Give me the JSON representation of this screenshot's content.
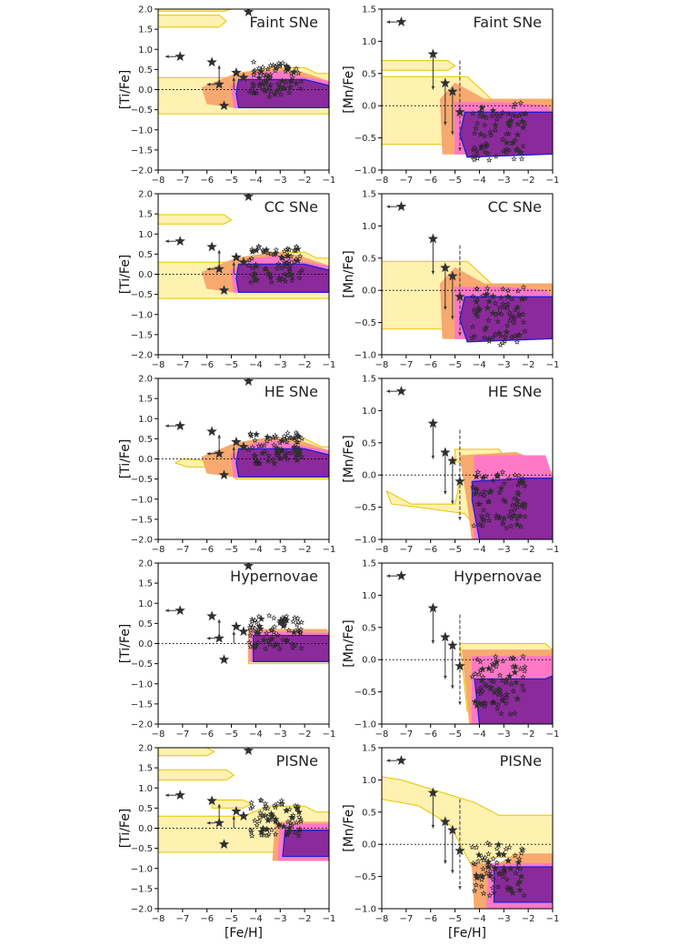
{
  "figure": {
    "xlabel": "[Fe/H]",
    "row_titles": [
      "Faint SNe",
      "CC SNe",
      "HE SNe",
      "Hypernovae",
      "PISNe"
    ]
  },
  "colors": {
    "c1": "#fff1b0",
    "c1_edge": "#e8c400",
    "c2": "#f7a96f",
    "c3": "#ff79c6",
    "c4": "#8b2a9a",
    "c4_edge": "#1f1fd6",
    "star": "#303030"
  },
  "chart_data": [
    {
      "type": "scatter",
      "panel": "Ti-Faint",
      "title": "Faint SNe",
      "ylabel": "[Ti/Fe]",
      "xlabel": "",
      "xlim": [
        -8,
        -1
      ],
      "ylim": [
        -2,
        2
      ],
      "xticks": [
        "−8",
        "−7",
        "−6",
        "−5",
        "−4",
        "−3",
        "−2",
        "−1"
      ],
      "yticks": [
        "2.0",
        "1.5",
        "1.0",
        "0.5",
        "0.0",
        "−0.5",
        "−1.0",
        "−1.5",
        "−2.0"
      ],
      "big_stars": [
        [
          -7.1,
          0.82
        ],
        [
          -5.8,
          0.68
        ],
        [
          -5.5,
          0.13
        ],
        [
          -5.3,
          -0.4
        ],
        [
          -4.3,
          1.93
        ],
        [
          -4.8,
          0.42
        ],
        [
          -4.5,
          0.3
        ]
      ]
    },
    {
      "type": "scatter",
      "panel": "Mn-Faint",
      "title": "Faint SNe",
      "ylabel": "[Mn/Fe]",
      "xlabel": "",
      "xlim": [
        -8,
        -1
      ],
      "ylim": [
        -1,
        1.5
      ],
      "xticks": [
        "−8",
        "−7",
        "−6",
        "−5",
        "−4",
        "−3",
        "−2",
        "−1"
      ],
      "yticks": [
        "1.5",
        "1.0",
        "0.5",
        "0.0",
        "−0.5",
        "−1.0"
      ],
      "big_stars": [
        [
          -7.2,
          1.3
        ],
        [
          -5.9,
          0.8
        ],
        [
          -5.4,
          0.35
        ],
        [
          -5.1,
          0.22
        ],
        [
          -4.8,
          -0.1
        ]
      ]
    },
    {
      "type": "scatter",
      "panel": "Ti-CC",
      "title": "CC SNe",
      "ylabel": "[Ti/Fe]",
      "xlabel": "",
      "xlim": [
        -8,
        -1
      ],
      "ylim": [
        -2,
        2
      ],
      "xticks": [
        "−8",
        "−7",
        "−6",
        "−5",
        "−4",
        "−3",
        "−2",
        "−1"
      ],
      "yticks": [
        "2.0",
        "1.5",
        "1.0",
        "0.5",
        "0.0",
        "−0.5",
        "−1.0",
        "−1.5",
        "−2.0"
      ],
      "big_stars": [
        [
          -7.1,
          0.82
        ],
        [
          -5.8,
          0.68
        ],
        [
          -5.5,
          0.13
        ],
        [
          -5.3,
          -0.4
        ],
        [
          -4.3,
          1.93
        ],
        [
          -4.8,
          0.42
        ],
        [
          -4.5,
          0.3
        ]
      ]
    },
    {
      "type": "scatter",
      "panel": "Mn-CC",
      "title": "CC SNe",
      "ylabel": "[Mn/Fe]",
      "xlabel": "",
      "xlim": [
        -8,
        -1
      ],
      "ylim": [
        -1,
        1.5
      ],
      "xticks": [
        "−8",
        "−7",
        "−6",
        "−5",
        "−4",
        "−3",
        "−2",
        "−1"
      ],
      "yticks": [
        "1.5",
        "1.0",
        "0.5",
        "0.0",
        "−0.5",
        "−1.0"
      ],
      "big_stars": [
        [
          -7.2,
          1.3
        ],
        [
          -5.9,
          0.8
        ],
        [
          -5.4,
          0.35
        ],
        [
          -5.1,
          0.22
        ],
        [
          -4.8,
          -0.1
        ]
      ]
    },
    {
      "type": "scatter",
      "panel": "Ti-HE",
      "title": "HE SNe",
      "ylabel": "[Ti/Fe]",
      "xlabel": "",
      "xlim": [
        -8,
        -1
      ],
      "ylim": [
        -2,
        2
      ],
      "xticks": [
        "−8",
        "−7",
        "−6",
        "−5",
        "−4",
        "−3",
        "−2",
        "−1"
      ],
      "yticks": [
        "2.0",
        "1.5",
        "1.0",
        "0.5",
        "0.0",
        "−0.5",
        "−1.0",
        "−1.5",
        "−2.0"
      ],
      "big_stars": [
        [
          -7.1,
          0.82
        ],
        [
          -5.8,
          0.68
        ],
        [
          -5.5,
          0.13
        ],
        [
          -5.3,
          -0.4
        ],
        [
          -4.3,
          1.93
        ],
        [
          -4.8,
          0.42
        ],
        [
          -4.5,
          0.3
        ]
      ]
    },
    {
      "type": "scatter",
      "panel": "Mn-HE",
      "title": "HE SNe",
      "ylabel": "[Mn/Fe]",
      "xlabel": "",
      "xlim": [
        -8,
        -1
      ],
      "ylim": [
        -1,
        1.5
      ],
      "xticks": [
        "−8",
        "−7",
        "−6",
        "−5",
        "−4",
        "−3",
        "−2",
        "−1"
      ],
      "yticks": [
        "1.5",
        "1.0",
        "0.5",
        "0.0",
        "−0.5",
        "−1.0"
      ],
      "big_stars": [
        [
          -7.2,
          1.3
        ],
        [
          -5.9,
          0.8
        ],
        [
          -5.4,
          0.35
        ],
        [
          -5.1,
          0.22
        ],
        [
          -4.8,
          -0.1
        ]
      ]
    },
    {
      "type": "scatter",
      "panel": "Ti-HN",
      "title": "Hypernovae",
      "ylabel": "[Ti/Fe]",
      "xlabel": "",
      "xlim": [
        -8,
        -1
      ],
      "ylim": [
        -2,
        2
      ],
      "xticks": [
        "−8",
        "−7",
        "−6",
        "−5",
        "−4",
        "−3",
        "−2",
        "−1"
      ],
      "yticks": [
        "2.0",
        "1.5",
        "1.0",
        "0.5",
        "0.0",
        "−0.5",
        "−1.0",
        "−1.5",
        "−2.0"
      ],
      "big_stars": [
        [
          -7.1,
          0.82
        ],
        [
          -5.8,
          0.68
        ],
        [
          -5.5,
          0.13
        ],
        [
          -5.3,
          -0.4
        ],
        [
          -4.3,
          1.93
        ],
        [
          -4.8,
          0.42
        ],
        [
          -4.5,
          0.3
        ]
      ]
    },
    {
      "type": "scatter",
      "panel": "Mn-HN",
      "title": "Hypernovae",
      "ylabel": "[Mn/Fe]",
      "xlabel": "",
      "xlim": [
        -8,
        -1
      ],
      "ylim": [
        -1,
        1.5
      ],
      "xticks": [
        "−8",
        "−7",
        "−6",
        "−5",
        "−4",
        "−3",
        "−2",
        "−1"
      ],
      "yticks": [
        "1.5",
        "1.0",
        "0.5",
        "0.0",
        "−0.5",
        "−1.0"
      ],
      "big_stars": [
        [
          -7.2,
          1.3
        ],
        [
          -5.9,
          0.8
        ],
        [
          -5.4,
          0.35
        ],
        [
          -5.1,
          0.22
        ],
        [
          -4.8,
          -0.1
        ]
      ]
    },
    {
      "type": "scatter",
      "panel": "Ti-PISN",
      "title": "PISNe",
      "ylabel": "[Ti/Fe]",
      "xlabel": "[Fe/H]",
      "xlim": [
        -8,
        -1
      ],
      "ylim": [
        -2,
        2
      ],
      "xticks": [
        "−8",
        "−7",
        "−6",
        "−5",
        "−4",
        "−3",
        "−2",
        "−1"
      ],
      "yticks": [
        "2.0",
        "1.5",
        "1.0",
        "0.5",
        "0.0",
        "−0.5",
        "−1.0",
        "−1.5",
        "−2.0"
      ],
      "big_stars": [
        [
          -7.1,
          0.82
        ],
        [
          -5.8,
          0.68
        ],
        [
          -5.5,
          0.13
        ],
        [
          -5.3,
          -0.4
        ],
        [
          -4.3,
          1.93
        ],
        [
          -4.8,
          0.42
        ],
        [
          -4.5,
          0.3
        ]
      ]
    },
    {
      "type": "scatter",
      "panel": "Mn-PISN",
      "title": "PISNe",
      "ylabel": "[Mn/Fe]",
      "xlabel": "[Fe/H]",
      "xlim": [
        -8,
        -1
      ],
      "ylim": [
        -1,
        1.5
      ],
      "xticks": [
        "−8",
        "−7",
        "−6",
        "−5",
        "−4",
        "−3",
        "−2",
        "−1"
      ],
      "yticks": [
        "1.5",
        "1.0",
        "0.5",
        "0.0",
        "−0.5",
        "−1.0"
      ],
      "big_stars": [
        [
          -7.2,
          1.3
        ],
        [
          -5.9,
          0.8
        ],
        [
          -5.4,
          0.35
        ],
        [
          -5.1,
          0.22
        ],
        [
          -4.8,
          -0.1
        ]
      ]
    }
  ]
}
